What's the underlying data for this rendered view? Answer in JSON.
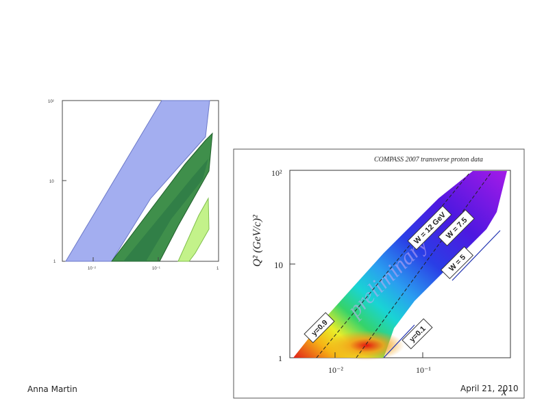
{
  "footer": {
    "author": "Anna Martin",
    "date": "April 21, 2010"
  },
  "chart_data": [
    {
      "type": "area",
      "title": "",
      "xlabel": "",
      "ylabel": "",
      "x_scale": "log",
      "y_scale": "log",
      "xlim": [
        0.003,
        1
      ],
      "ylim": [
        1,
        100
      ],
      "x_ticks": [
        "10⁻²",
        "10⁻¹",
        "1"
      ],
      "y_ticks": [
        "1",
        "10",
        "10²"
      ],
      "series": [
        {
          "name": "blue region",
          "color": "#a3aef0"
        },
        {
          "name": "green region (outer)",
          "color": "#3f8f4b"
        },
        {
          "name": "green region (inner)",
          "color": "#2e7a45"
        },
        {
          "name": "light green region",
          "color": "#c3f28a"
        }
      ]
    },
    {
      "type": "heatmap",
      "title": "COMPASS 2007 transverse proton data",
      "xlabel": "x",
      "ylabel": "Q² (GeV/c)²",
      "x_scale": "log",
      "y_scale": "log",
      "xlim": [
        0.003,
        1
      ],
      "ylim": [
        1,
        100
      ],
      "x_ticks": [
        "10⁻²",
        "10⁻¹"
      ],
      "y_ticks": [
        "1",
        "10",
        "10²"
      ],
      "watermark": "preliminary",
      "annotations": [
        "W = 12 GeV",
        "W = 7.5",
        "W = 5",
        "y=0.9",
        "y=0.1"
      ]
    }
  ]
}
